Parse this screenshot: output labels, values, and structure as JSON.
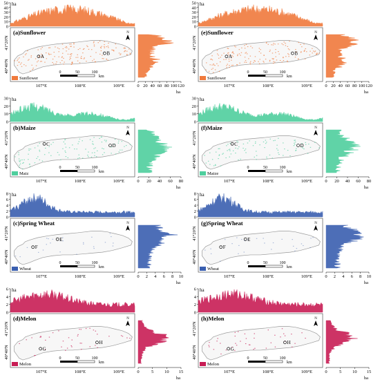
{
  "figure": {
    "units": "ha",
    "lat_labels": [
      "41°20'N",
      "40°40'N"
    ],
    "lon_labels": [
      "107°E",
      "108°E",
      "109°E"
    ],
    "north_label": "N",
    "scalebar": {
      "ticks": [
        "0",
        "50",
        "100"
      ],
      "unit": "km"
    }
  },
  "colors": {
    "sunflower": "#f07a3c",
    "maize": "#4fcf9e",
    "wheat": "#3a5fb0",
    "melon": "#c81d55",
    "boundary": "#999999"
  },
  "panels": [
    {
      "id": "a",
      "title": "(a)Sunflower",
      "crop": "sunflower",
      "legend": "Sunflower",
      "top_ticks": [
        "0",
        "10",
        "20",
        "30",
        "40",
        "50"
      ],
      "side_ticks": [
        "0",
        "20",
        "40",
        "60",
        "80",
        "100",
        "120"
      ],
      "points": [
        {
          "label": "A",
          "lon": 107.15,
          "lat": 40.95
        },
        {
          "label": "B",
          "lon": 108.9,
          "lat": 41.05
        }
      ]
    },
    {
      "id": "e",
      "title": "(e)Sunflower",
      "crop": "sunflower",
      "legend": "Sunflower",
      "top_ticks": [
        "0",
        "10",
        "20",
        "30",
        "40",
        "50"
      ],
      "side_ticks": [
        "0",
        "20",
        "40",
        "60",
        "80",
        "100",
        "120"
      ],
      "points": [
        {
          "label": "A",
          "lon": 107.15,
          "lat": 40.95
        },
        {
          "label": "B",
          "lon": 108.9,
          "lat": 41.05
        }
      ]
    },
    {
      "id": "b",
      "title": "(b)Maize",
      "crop": "maize",
      "legend": "Maiz",
      "top_ticks": [
        "0",
        "10",
        "20",
        "30"
      ],
      "side_ticks": [
        "0",
        "20",
        "40",
        "60",
        "80"
      ],
      "points": [
        {
          "label": "C",
          "lon": 107.3,
          "lat": 41.2
        },
        {
          "label": "D",
          "lon": 109.05,
          "lat": 41.15
        }
      ]
    },
    {
      "id": "f",
      "title": "(f)Maize",
      "crop": "maize",
      "legend": "Maize",
      "top_ticks": [
        "0",
        "10",
        "20",
        "30"
      ],
      "side_ticks": [
        "0",
        "20",
        "40",
        "60",
        "80"
      ],
      "points": [
        {
          "label": "C",
          "lon": 107.3,
          "lat": 41.2
        },
        {
          "label": "D",
          "lon": 109.05,
          "lat": 41.15
        }
      ]
    },
    {
      "id": "c",
      "title": "(c)Spring Wheat",
      "crop": "wheat",
      "legend": "Wheat",
      "top_ticks": [
        "0",
        "2",
        "4",
        "6",
        "8"
      ],
      "side_ticks": [
        "0",
        "2",
        "4",
        "6",
        "8",
        "10"
      ],
      "points": [
        {
          "label": "E",
          "lon": 107.65,
          "lat": 41.2
        },
        {
          "label": "F",
          "lon": 107.0,
          "lat": 40.95
        }
      ]
    },
    {
      "id": "g",
      "title": "(g)Spring Wheat",
      "crop": "wheat",
      "legend": "Wheat",
      "top_ticks": [
        "0",
        "2",
        "4",
        "6",
        "8"
      ],
      "side_ticks": [
        "0",
        "2",
        "4",
        "6",
        "8",
        "10"
      ],
      "points": [
        {
          "label": "E",
          "lon": 107.65,
          "lat": 41.2
        },
        {
          "label": "F",
          "lon": 107.0,
          "lat": 40.95
        }
      ]
    },
    {
      "id": "d",
      "title": "(d)Melon",
      "crop": "melon",
      "legend": "Melon",
      "top_ticks": [
        "0",
        "2",
        "4",
        "6"
      ],
      "side_ticks": [
        "0",
        "5",
        "10",
        "15"
      ],
      "points": [
        {
          "label": "G",
          "lon": 107.2,
          "lat": 40.75
        },
        {
          "label": "H",
          "lon": 108.7,
          "lat": 40.95
        }
      ]
    },
    {
      "id": "h",
      "title": "(h)Melon",
      "crop": "melon",
      "legend": "Melon",
      "top_ticks": [
        "0",
        "2",
        "4",
        "6"
      ],
      "side_ticks": [
        "0",
        "5",
        "10",
        "15"
      ],
      "points": [
        {
          "label": "G",
          "lon": 107.2,
          "lat": 40.75
        },
        {
          "label": "H",
          "lon": 108.7,
          "lat": 40.95
        }
      ]
    }
  ]
}
